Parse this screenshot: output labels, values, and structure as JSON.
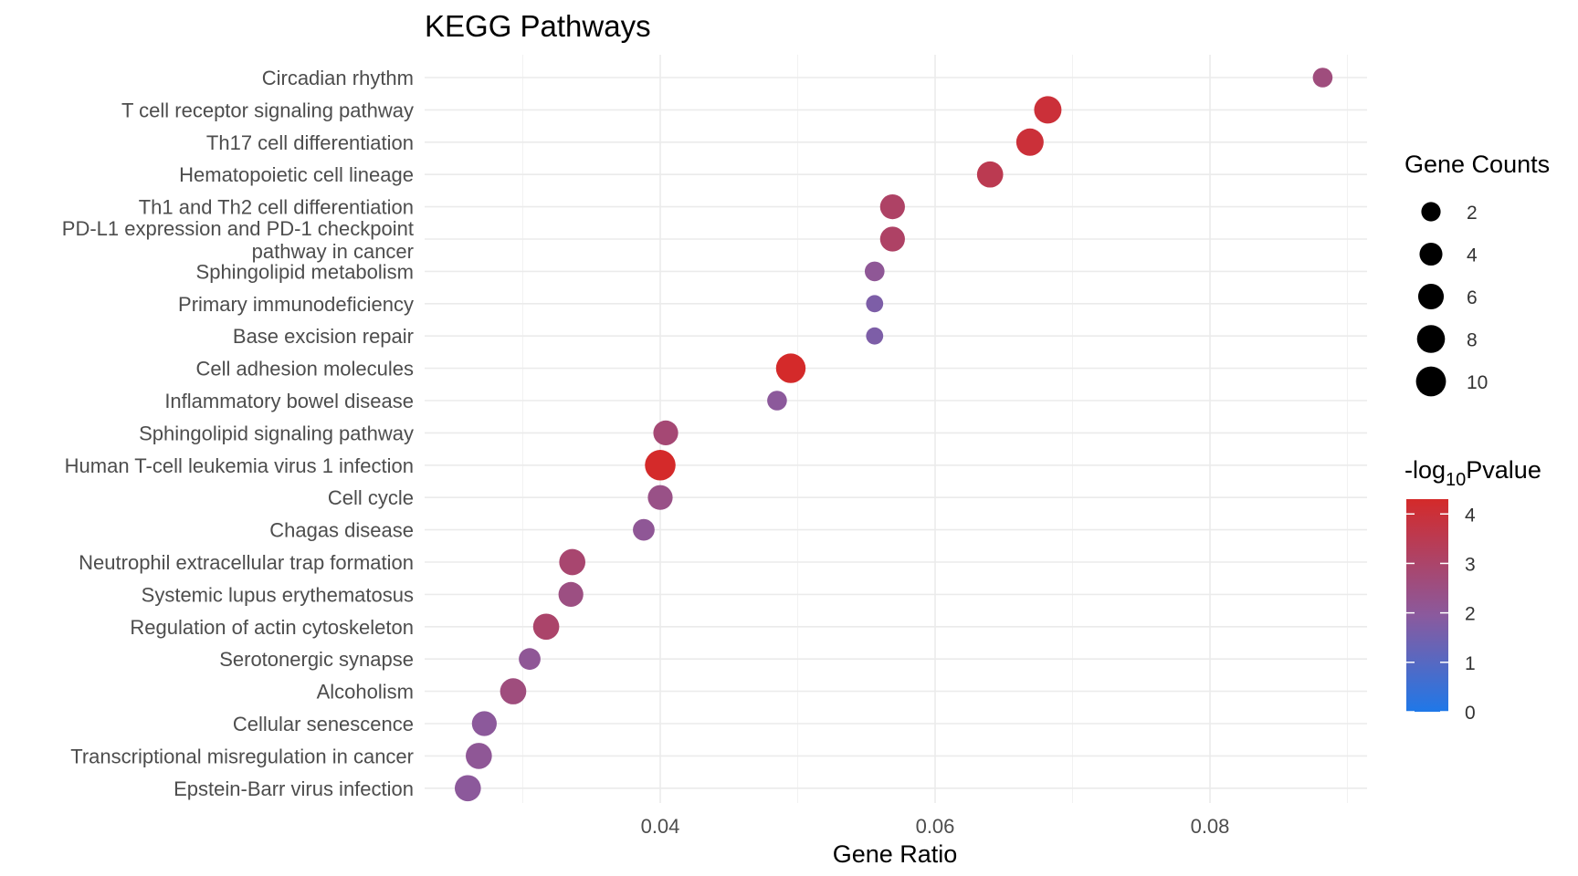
{
  "chart_data": {
    "type": "scatter",
    "title": "KEGG Pathways",
    "xlabel": "Gene Ratio",
    "ylabel": "",
    "xlim": [
      0.0225,
      0.0915
    ],
    "x_ticks": [
      0.04,
      0.06,
      0.08
    ],
    "x_tick_labels": [
      "0.04",
      "0.06",
      "0.08"
    ],
    "grid": true,
    "points": [
      {
        "pathway": "Circadian rhythm",
        "x": 0.0882,
        "count": 2,
        "neg_log10_p": 2.6
      },
      {
        "pathway": "T cell receptor signaling pathway",
        "x": 0.0682,
        "count": 7,
        "neg_log10_p": 4.0
      },
      {
        "pathway": "Th17 cell differentiation",
        "x": 0.0669,
        "count": 7,
        "neg_log10_p": 4.0
      },
      {
        "pathway": "Hematopoietic cell lineage",
        "x": 0.064,
        "count": 6,
        "neg_log10_p": 3.5
      },
      {
        "pathway": "Th1 and Th2 cell differentiation",
        "x": 0.0569,
        "count": 5,
        "neg_log10_p": 3.1
      },
      {
        "pathway": "PD-L1 expression and PD-1 checkpoint\npathway in cancer",
        "x": 0.0569,
        "count": 5,
        "neg_log10_p": 3.1
      },
      {
        "pathway": "Sphingolipid metabolism",
        "x": 0.0556,
        "count": 2,
        "neg_log10_p": 2.1
      },
      {
        "pathway": "Primary immunodeficiency",
        "x": 0.0556,
        "count": 1,
        "neg_log10_p": 1.7
      },
      {
        "pathway": "Base excision repair",
        "x": 0.0556,
        "count": 1,
        "neg_log10_p": 1.7
      },
      {
        "pathway": "Cell adhesion molecules",
        "x": 0.0495,
        "count": 9,
        "neg_log10_p": 4.3
      },
      {
        "pathway": "Inflammatory bowel disease",
        "x": 0.0485,
        "count": 2,
        "neg_log10_p": 2.0
      },
      {
        "pathway": "Sphingolipid signaling pathway",
        "x": 0.0404,
        "count": 5,
        "neg_log10_p": 2.8
      },
      {
        "pathway": "Human T-cell leukemia virus 1 infection",
        "x": 0.04,
        "count": 10,
        "neg_log10_p": 4.3
      },
      {
        "pathway": "Cell cycle",
        "x": 0.04,
        "count": 5,
        "neg_log10_p": 2.4
      },
      {
        "pathway": "Chagas disease",
        "x": 0.0388,
        "count": 3,
        "neg_log10_p": 2.1
      },
      {
        "pathway": "Neutrophil extracellular trap formation",
        "x": 0.0336,
        "count": 6,
        "neg_log10_p": 2.9
      },
      {
        "pathway": "Systemic lupus erythematosus",
        "x": 0.0335,
        "count": 5,
        "neg_log10_p": 2.5
      },
      {
        "pathway": "Regulation of actin cytoskeleton",
        "x": 0.0317,
        "count": 6,
        "neg_log10_p": 3.0
      },
      {
        "pathway": "Serotonergic synapse",
        "x": 0.0305,
        "count": 3,
        "neg_log10_p": 2.1
      },
      {
        "pathway": "Alcoholism",
        "x": 0.0293,
        "count": 6,
        "neg_log10_p": 2.6
      },
      {
        "pathway": "Cellular senescence",
        "x": 0.0272,
        "count": 5,
        "neg_log10_p": 2.0
      },
      {
        "pathway": "Transcriptional misregulation in cancer",
        "x": 0.0268,
        "count": 6,
        "neg_log10_p": 2.1
      },
      {
        "pathway": "Epstein-Barr virus infection",
        "x": 0.026,
        "count": 6,
        "neg_log10_p": 2.0
      }
    ],
    "legend_size": {
      "title": "Gene Counts",
      "values": [
        2,
        4,
        6,
        8,
        10
      ],
      "labels": [
        "2",
        "4",
        "6",
        "8",
        "10"
      ]
    },
    "legend_color": {
      "title_prefix": "-log",
      "title_sub": "10",
      "title_suffix": "Pvalue",
      "range": [
        0,
        4.3
      ],
      "ticks": [
        0,
        1,
        2,
        3,
        4
      ],
      "tick_labels": [
        "0",
        "1",
        "2",
        "3",
        "4"
      ],
      "low_color": "#1f78e8",
      "mid_color": "#8a5a9e",
      "high_color": "#d42a2a"
    },
    "legend_placement": "right"
  }
}
